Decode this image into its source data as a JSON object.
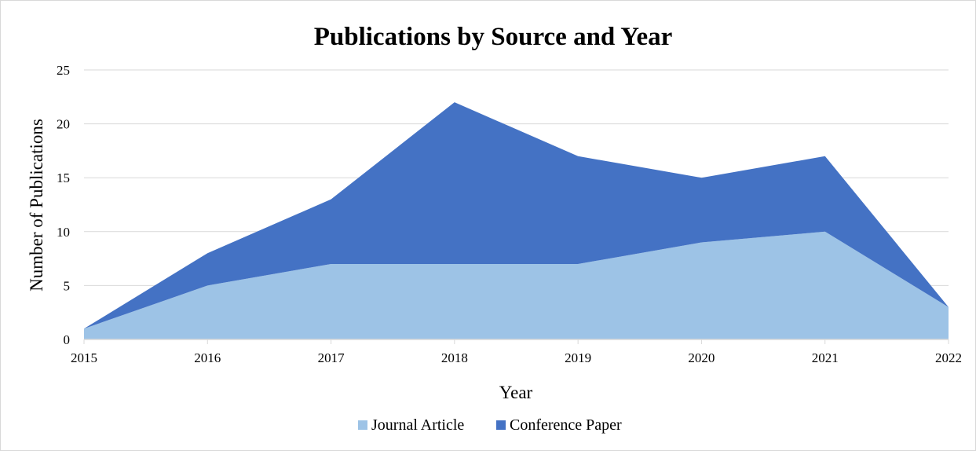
{
  "chart_data": {
    "type": "area",
    "stacked": true,
    "title": "Publications by Source and Year",
    "xlabel": "Year",
    "ylabel": "Number of Publications",
    "x": [
      "2015",
      "2016",
      "2017",
      "2018",
      "2019",
      "2020",
      "2021",
      "2022"
    ],
    "ylim": [
      0,
      25
    ],
    "yticks": [
      "0",
      "5",
      "10",
      "15",
      "20",
      "25"
    ],
    "grid": true,
    "legend_position": "bottom",
    "series": [
      {
        "name": "Journal Article",
        "values": [
          1,
          5,
          7,
          7,
          7,
          9,
          10,
          3
        ],
        "color": "#9dc3e6"
      },
      {
        "name": "Conference Paper",
        "values": [
          0,
          3,
          6,
          15,
          10,
          6,
          7,
          0
        ],
        "color": "#4472c4"
      }
    ]
  }
}
